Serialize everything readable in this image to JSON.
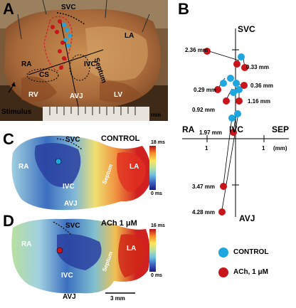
{
  "panels": {
    "A": {
      "letter": "A",
      "labels": {
        "svc": "SVC",
        "septum": "Septum",
        "la": "LA",
        "ra": "RA",
        "ivc": "IVC",
        "cs": "CS",
        "rv": "RV",
        "avj": "AVJ",
        "lv": "LV",
        "stimulus": "Stimulus",
        "mm": "mm"
      }
    },
    "B": {
      "letter": "B",
      "labels": {
        "svc": "SVC",
        "ra": "RA",
        "ivc": "IVC",
        "sep": "SEP",
        "avj": "AVJ",
        "tick_left": "1",
        "tick_right": "1",
        "unit": "(mm)"
      },
      "legend": {
        "control": "CONTROL",
        "ach": "ACh, 1 μM"
      },
      "colors": {
        "control": "#1ea6e0",
        "ach": "#c8151b"
      },
      "shifts": [
        "2.36 mm",
        "0.33 mm",
        "0.29 mm",
        "0.36 mm",
        "0.92 mm",
        "1.16 mm",
        "1.97 mm",
        "3.47 mm",
        "4.28 mm"
      ]
    },
    "C": {
      "letter": "C",
      "condition": "CONTROL",
      "labels": {
        "svc": "SVC",
        "ra": "RA",
        "ivc": "IVC",
        "septum": "Septum",
        "la": "LA",
        "avj": "AVJ"
      },
      "scale_max": "18 ms",
      "scale_min": "0 ms"
    },
    "D": {
      "letter": "D",
      "condition": "ACh 1 μM",
      "labels": {
        "svc": "SVC",
        "ra": "RA",
        "ivc": "IVC",
        "septum": "Septum",
        "la": "LA",
        "avj": "AVJ"
      },
      "scale_max": "16 ms",
      "scale_min": "0 ms",
      "scale_bar": "3 mm"
    }
  }
}
